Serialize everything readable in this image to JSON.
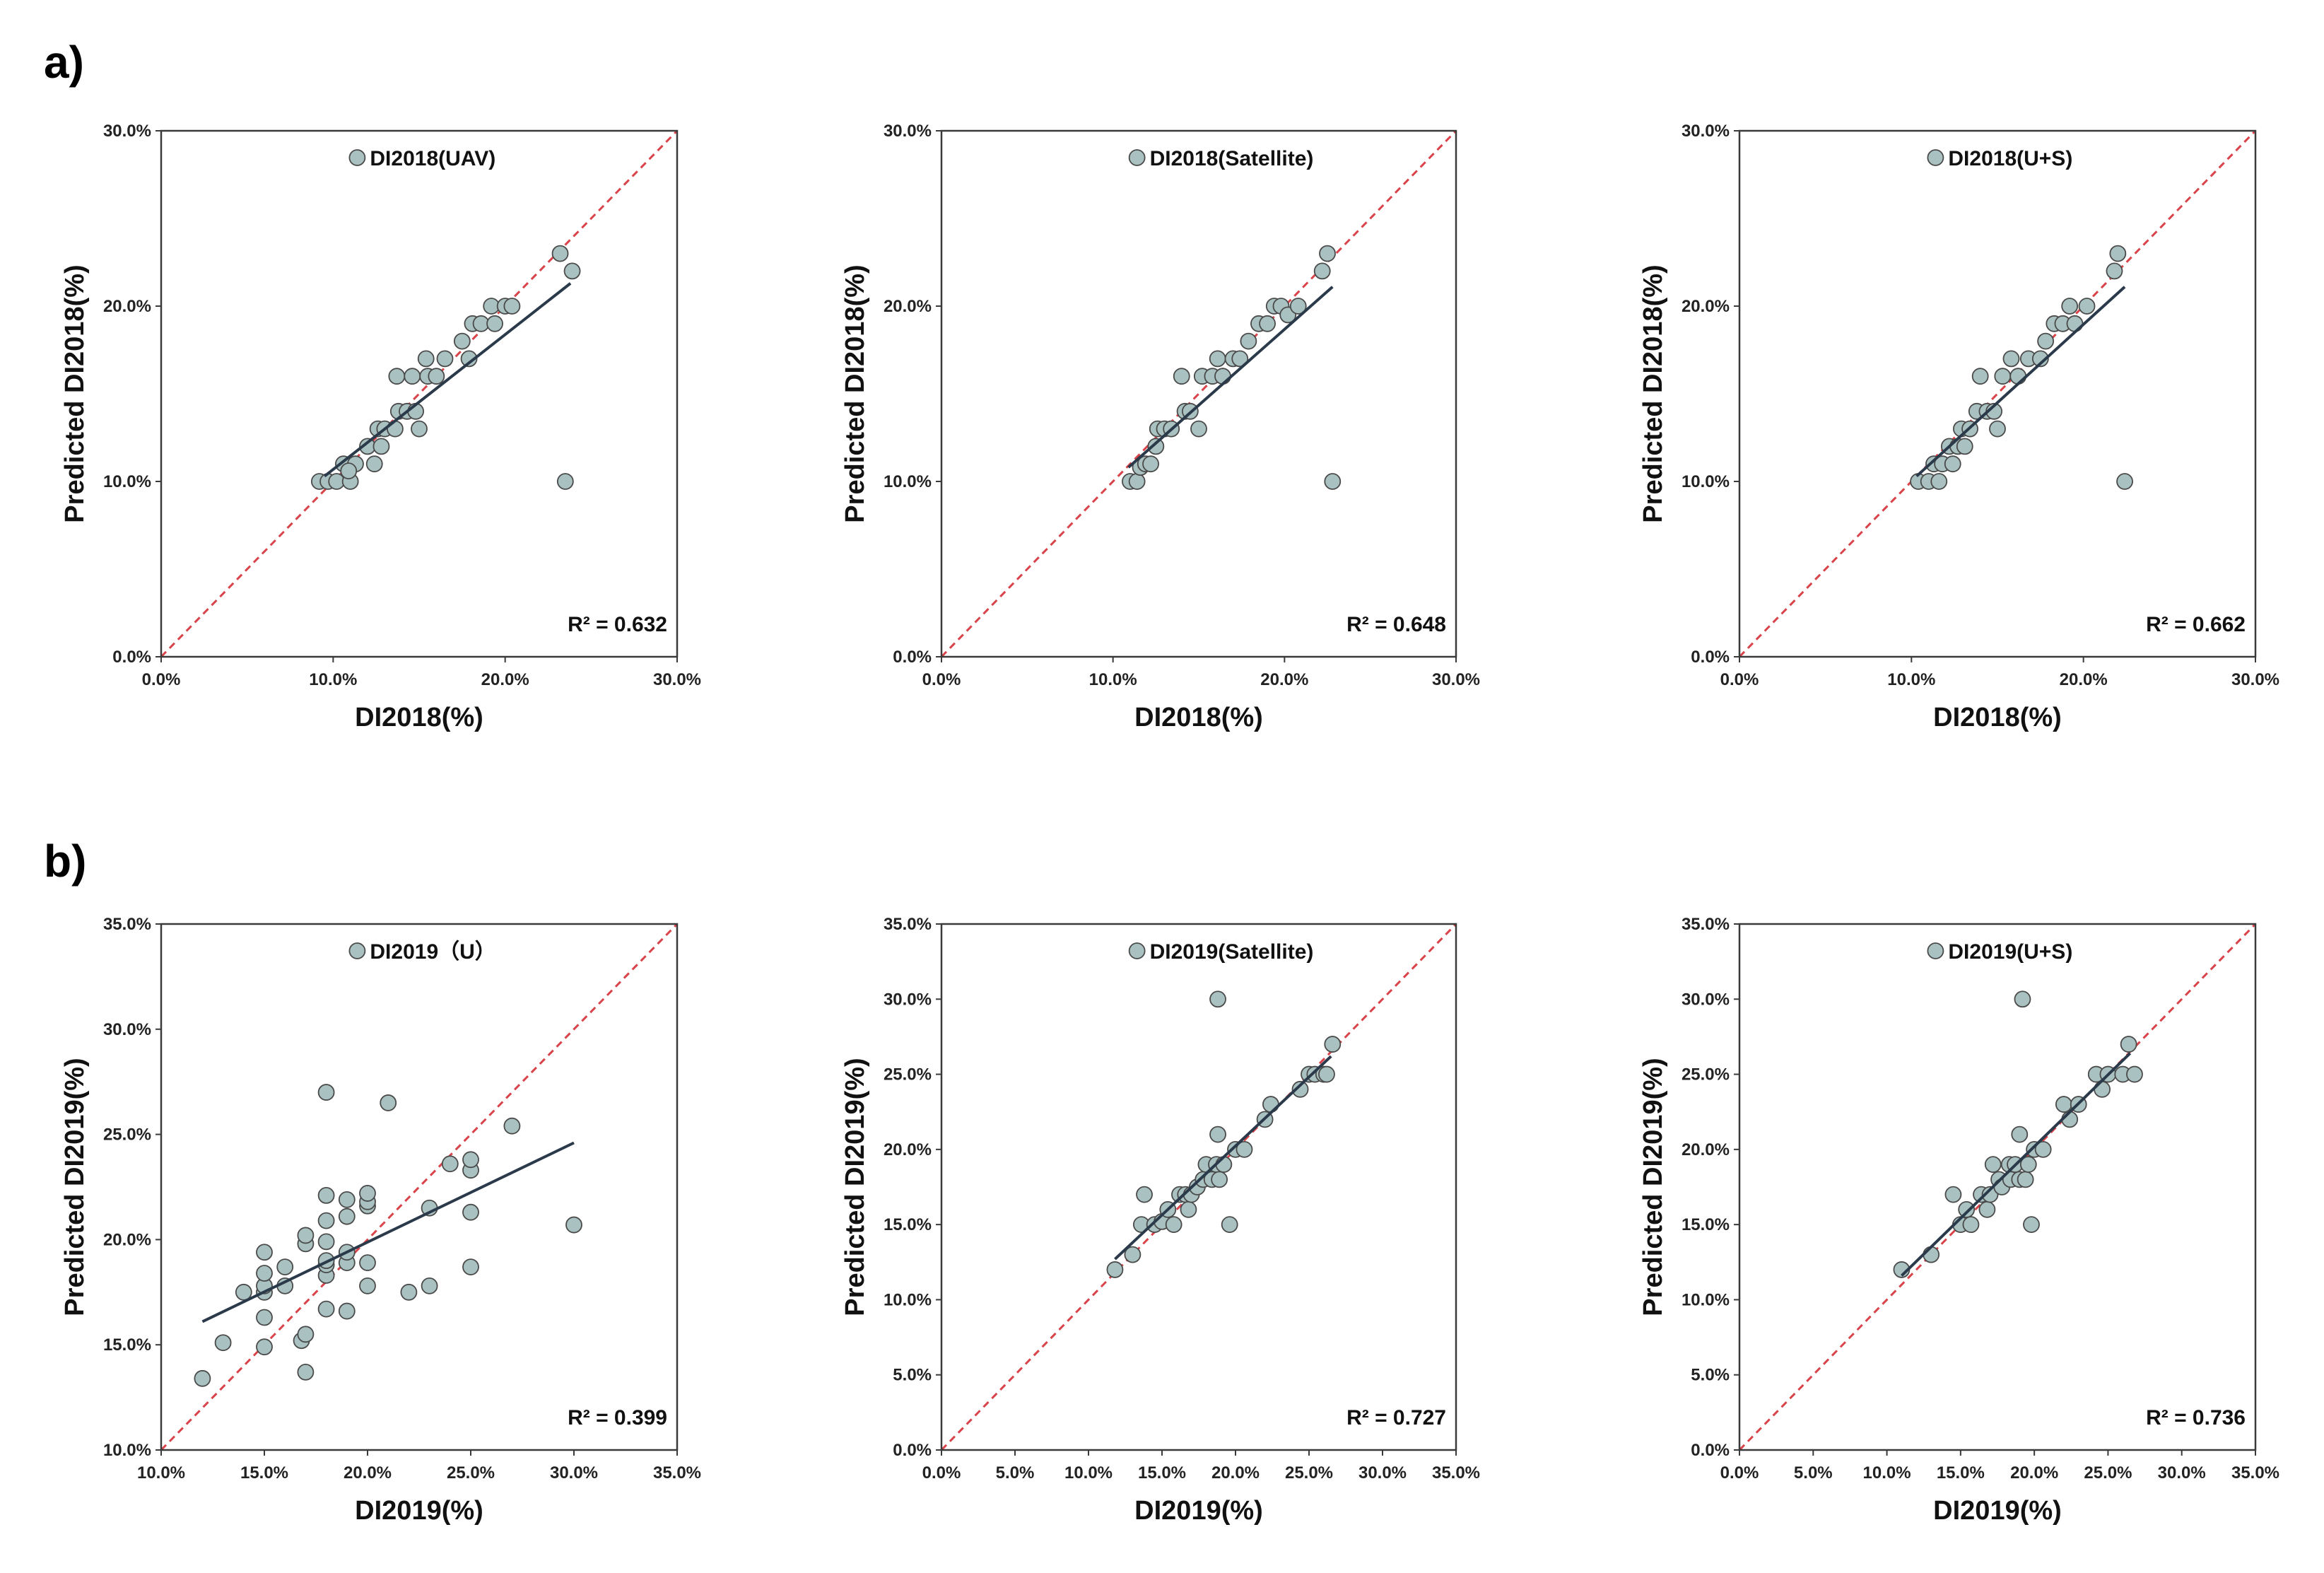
{
  "colors": {
    "point_fill": "#a9c2c1",
    "point_stroke": "#4a4a4a",
    "fit_line": "#2b3a4a",
    "identity_line": "#d9434a",
    "frame": "#3a3a3a"
  },
  "row_labels": [
    "a)",
    "b)"
  ],
  "chart_data": [
    {
      "type": "scatter",
      "row": 0,
      "col": 0,
      "legend": "DI2018(UAV)",
      "r2_label": "R² = 0.632",
      "xlabel": "DI2018(%)",
      "ylabel": "Predicted DI2018(%)",
      "xlim": [
        0,
        30
      ],
      "ylim": [
        0,
        30
      ],
      "xticks": [
        0,
        10,
        20,
        30
      ],
      "yticks": [
        0,
        10,
        20,
        30
      ],
      "xtick_labels": [
        "0.0%",
        "10.0%",
        "20.0%",
        "30.0%"
      ],
      "ytick_labels": [
        "0.0%",
        "10.0%",
        "20.0%",
        "30.0%"
      ],
      "fit": [
        [
          9.5,
          10.3
        ],
        [
          23.8,
          21.3
        ]
      ],
      "points": [
        [
          9.2,
          10
        ],
        [
          9.7,
          10
        ],
        [
          10.2,
          10
        ],
        [
          10.6,
          11
        ],
        [
          11,
          10
        ],
        [
          11.3,
          11
        ],
        [
          10.9,
          10.6
        ],
        [
          12,
          12
        ],
        [
          12.4,
          11
        ],
        [
          12.6,
          13
        ],
        [
          12.8,
          12
        ],
        [
          13,
          13
        ],
        [
          13.6,
          13
        ],
        [
          13.7,
          16
        ],
        [
          13.8,
          14
        ],
        [
          14.3,
          14
        ],
        [
          14.6,
          16
        ],
        [
          14.8,
          14
        ],
        [
          15,
          13
        ],
        [
          15.4,
          17
        ],
        [
          15.5,
          16
        ],
        [
          16,
          16
        ],
        [
          16.5,
          17
        ],
        [
          17.5,
          18
        ],
        [
          17.9,
          17
        ],
        [
          18.1,
          19
        ],
        [
          18.6,
          19
        ],
        [
          19.2,
          20
        ],
        [
          19.4,
          19
        ],
        [
          20,
          20
        ],
        [
          20.4,
          20
        ],
        [
          23.2,
          23
        ],
        [
          23.9,
          22
        ],
        [
          23.5,
          10
        ]
      ]
    },
    {
      "type": "scatter",
      "row": 0,
      "col": 1,
      "legend": "DI2018(Satellite)",
      "r2_label": "R² = 0.648",
      "xlabel": "DI2018(%)",
      "ylabel": "Predicted DI2018(%)",
      "xlim": [
        0,
        30
      ],
      "ylim": [
        0,
        30
      ],
      "xticks": [
        0,
        10,
        20,
        30
      ],
      "yticks": [
        0,
        10,
        20,
        30
      ],
      "xtick_labels": [
        "0.0%",
        "10.0%",
        "20.0%",
        "30.0%"
      ],
      "ytick_labels": [
        "0.0%",
        "10.0%",
        "20.0%",
        "30.0%"
      ],
      "fit": [
        [
          10.9,
          10.8
        ],
        [
          22.8,
          21.1
        ]
      ],
      "points": [
        [
          11,
          10
        ],
        [
          11.4,
          10
        ],
        [
          11.6,
          10.8
        ],
        [
          11.9,
          11
        ],
        [
          12.2,
          11
        ],
        [
          12.5,
          12
        ],
        [
          12.6,
          13
        ],
        [
          13,
          13
        ],
        [
          13.4,
          13
        ],
        [
          14,
          16
        ],
        [
          14.2,
          14
        ],
        [
          14.5,
          14
        ],
        [
          15,
          13
        ],
        [
          15.2,
          16
        ],
        [
          15.8,
          16
        ],
        [
          16.1,
          17
        ],
        [
          16.4,
          16
        ],
        [
          17,
          17
        ],
        [
          17.4,
          17
        ],
        [
          17.9,
          18
        ],
        [
          18.5,
          19
        ],
        [
          19,
          19
        ],
        [
          19.4,
          20
        ],
        [
          19.8,
          20
        ],
        [
          20.2,
          19.5
        ],
        [
          20.8,
          20
        ],
        [
          22.2,
          22
        ],
        [
          22.5,
          23
        ],
        [
          22.8,
          10
        ]
      ]
    },
    {
      "type": "scatter",
      "row": 0,
      "col": 2,
      "legend": "DI2018(U+S)",
      "r2_label": "R² = 0.662",
      "xlabel": "DI2018(%)",
      "ylabel": "Predicted DI2018(%)",
      "xlim": [
        0,
        30
      ],
      "ylim": [
        0,
        30
      ],
      "xticks": [
        0,
        10,
        20,
        30
      ],
      "yticks": [
        0,
        10,
        20,
        30
      ],
      "xtick_labels": [
        "0.0%",
        "10.0%",
        "20.0%",
        "30.0%"
      ],
      "ytick_labels": [
        "0.0%",
        "10.0%",
        "20.0%",
        "30.0%"
      ],
      "fit": [
        [
          10.3,
          10.3
        ],
        [
          22.4,
          21.1
        ]
      ],
      "points": [
        [
          10.4,
          10
        ],
        [
          11,
          10
        ],
        [
          11.3,
          11
        ],
        [
          11.6,
          10
        ],
        [
          11.8,
          11
        ],
        [
          12.2,
          12
        ],
        [
          12.4,
          11
        ],
        [
          12.7,
          12
        ],
        [
          12.9,
          13
        ],
        [
          13.1,
          12
        ],
        [
          13.4,
          13
        ],
        [
          13.8,
          14
        ],
        [
          14,
          16
        ],
        [
          14.4,
          14
        ],
        [
          14.8,
          14
        ],
        [
          15,
          13
        ],
        [
          15.3,
          16
        ],
        [
          15.8,
          17
        ],
        [
          16.2,
          16
        ],
        [
          16.8,
          17
        ],
        [
          17.5,
          17
        ],
        [
          17.8,
          18
        ],
        [
          18.3,
          19
        ],
        [
          18.8,
          19
        ],
        [
          19.2,
          20
        ],
        [
          19.5,
          19
        ],
        [
          20.2,
          20
        ],
        [
          21.8,
          22
        ],
        [
          22,
          23
        ],
        [
          22.4,
          10
        ]
      ]
    },
    {
      "type": "scatter",
      "row": 1,
      "col": 0,
      "legend": "DI2019（U）",
      "r2_label": "R² = 0.399",
      "xlabel": "DI2019(%)",
      "ylabel": "Predicted DI2019(%)",
      "xlim": [
        10,
        35
      ],
      "ylim": [
        10,
        35
      ],
      "xticks": [
        10,
        15,
        20,
        25,
        30,
        35
      ],
      "yticks": [
        10,
        15,
        20,
        25,
        30,
        35
      ],
      "xtick_labels": [
        "10.0%",
        "15.0%",
        "20.0%",
        "25.0%",
        "30.0%",
        "35.0%"
      ],
      "ytick_labels": [
        "10.0%",
        "15.0%",
        "20.0%",
        "25.0%",
        "30.0%",
        "35.0%"
      ],
      "fit": [
        [
          12,
          16.1
        ],
        [
          30,
          24.6
        ]
      ],
      "points": [
        [
          12,
          13.4
        ],
        [
          13,
          15.1
        ],
        [
          14,
          17.5
        ],
        [
          15,
          14.9
        ],
        [
          15,
          16.3
        ],
        [
          15,
          17.5
        ],
        [
          15,
          17.8
        ],
        [
          15,
          18.4
        ],
        [
          15,
          19.4
        ],
        [
          16,
          17.8
        ],
        [
          16,
          18.7
        ],
        [
          16.8,
          15.2
        ],
        [
          17,
          13.7
        ],
        [
          17,
          15.5
        ],
        [
          17,
          19.8
        ],
        [
          17,
          20.2
        ],
        [
          18,
          16.7
        ],
        [
          18,
          18.3
        ],
        [
          18,
          18.8
        ],
        [
          18,
          19.0
        ],
        [
          18,
          19.9
        ],
        [
          18,
          20.9
        ],
        [
          18,
          22.1
        ],
        [
          18,
          27.0
        ],
        [
          19,
          16.6
        ],
        [
          19,
          18.9
        ],
        [
          19,
          19.4
        ],
        [
          19,
          21.1
        ],
        [
          19,
          21.9
        ],
        [
          20,
          17.8
        ],
        [
          20,
          18.9
        ],
        [
          20,
          21.6
        ],
        [
          20,
          21.8
        ],
        [
          20,
          22.2
        ],
        [
          21,
          26.5
        ],
        [
          22,
          17.5
        ],
        [
          23,
          17.8
        ],
        [
          23,
          21.5
        ],
        [
          24,
          23.6
        ],
        [
          25,
          18.7
        ],
        [
          25,
          21.3
        ],
        [
          25,
          23.3
        ],
        [
          25,
          23.8
        ],
        [
          27,
          25.4
        ],
        [
          30,
          20.7
        ]
      ]
    },
    {
      "type": "scatter",
      "row": 1,
      "col": 1,
      "legend": "DI2019(Satellite)",
      "r2_label": "R² = 0.727",
      "xlabel": "DI2019(%)",
      "ylabel": "Predicted DI2019(%)",
      "xlim": [
        0,
        35
      ],
      "ylim": [
        0,
        35
      ],
      "xticks": [
        0,
        5,
        10,
        15,
        20,
        25,
        30,
        35
      ],
      "yticks": [
        0,
        5,
        10,
        15,
        20,
        25,
        30,
        35
      ],
      "xtick_labels": [
        "0.0%",
        "5.0%",
        "10.0%",
        "15.0%",
        "20.0%",
        "25.0%",
        "30.0%",
        "35.0%"
      ],
      "ytick_labels": [
        "0.0%",
        "5.0%",
        "10.0%",
        "15.0%",
        "20.0%",
        "25.0%",
        "30.0%",
        "35.0%"
      ],
      "fit": [
        [
          11.8,
          12.7
        ],
        [
          26.5,
          26.2
        ]
      ],
      "points": [
        [
          11.8,
          12
        ],
        [
          13,
          13
        ],
        [
          13.6,
          15
        ],
        [
          13.8,
          17
        ],
        [
          14.5,
          15
        ],
        [
          15,
          15.2
        ],
        [
          15.4,
          16
        ],
        [
          15.8,
          15
        ],
        [
          16.2,
          17
        ],
        [
          16.6,
          17
        ],
        [
          16.8,
          16
        ],
        [
          17,
          17
        ],
        [
          17.4,
          17.5
        ],
        [
          17.8,
          18
        ],
        [
          18,
          19
        ],
        [
          18.4,
          18
        ],
        [
          18.7,
          19
        ],
        [
          18.8,
          21
        ],
        [
          18.9,
          18
        ],
        [
          18.8,
          30
        ],
        [
          19.2,
          19
        ],
        [
          19.6,
          15
        ],
        [
          20,
          20
        ],
        [
          20.6,
          20
        ],
        [
          22,
          22
        ],
        [
          22.4,
          23
        ],
        [
          24.4,
          24
        ],
        [
          25,
          25
        ],
        [
          25.4,
          25
        ],
        [
          26,
          25
        ],
        [
          26.2,
          25
        ],
        [
          26.6,
          27
        ]
      ]
    },
    {
      "type": "scatter",
      "row": 1,
      "col": 2,
      "legend": "DI2019(U+S)",
      "r2_label": "R² = 0.736",
      "xlabel": "DI2019(%)",
      "ylabel": "Predicted DI2019(%)",
      "xlim": [
        0,
        35
      ],
      "ylim": [
        0,
        35
      ],
      "xticks": [
        0,
        5,
        10,
        15,
        20,
        25,
        30,
        35
      ],
      "yticks": [
        0,
        5,
        10,
        15,
        20,
        25,
        30,
        35
      ],
      "xtick_labels": [
        "0.0%",
        "5.0%",
        "10.0%",
        "15.0%",
        "20.0%",
        "25.0%",
        "30.0%",
        "35.0%"
      ],
      "ytick_labels": [
        "0.0%",
        "5.0%",
        "10.0%",
        "15.0%",
        "20.0%",
        "25.0%",
        "30.0%",
        "35.0%"
      ],
      "fit": [
        [
          11,
          11.6
        ],
        [
          26.5,
          26.4
        ]
      ],
      "points": [
        [
          11,
          12
        ],
        [
          13,
          13
        ],
        [
          14.5,
          17
        ],
        [
          15,
          15
        ],
        [
          15.4,
          16
        ],
        [
          15.7,
          15
        ],
        [
          16.4,
          17
        ],
        [
          16.8,
          16
        ],
        [
          17,
          17
        ],
        [
          17.2,
          19
        ],
        [
          17.6,
          18
        ],
        [
          17.8,
          17.5
        ],
        [
          18.3,
          19
        ],
        [
          18.4,
          18
        ],
        [
          18.7,
          19
        ],
        [
          19,
          18
        ],
        [
          19.2,
          30
        ],
        [
          19,
          21
        ],
        [
          19.4,
          18
        ],
        [
          19.6,
          19
        ],
        [
          19.8,
          15
        ],
        [
          20,
          20
        ],
        [
          20.6,
          20
        ],
        [
          22,
          23
        ],
        [
          22.4,
          22
        ],
        [
          23,
          23
        ],
        [
          24.2,
          25
        ],
        [
          24.6,
          24
        ],
        [
          25,
          25
        ],
        [
          26,
          25
        ],
        [
          26.4,
          27
        ],
        [
          26.8,
          25
        ]
      ]
    }
  ]
}
